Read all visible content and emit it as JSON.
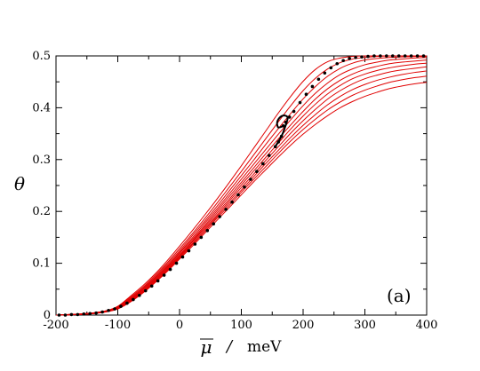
{
  "chart_data": {
    "type": "line",
    "xlabel_symbol": "μ",
    "xlabel_sep": "/",
    "xlabel_unit": "meV",
    "ylabel": "θ",
    "panel_label": "(a)",
    "xlim": [
      -200,
      400
    ],
    "ylim": [
      0,
      0.5
    ],
    "x_ticks": [
      -200,
      -100,
      0,
      100,
      200,
      300,
      400
    ],
    "y_ticks": [
      0,
      0.1,
      0.2,
      0.3,
      0.4,
      0.5
    ],
    "y_tick_labels": [
      "0",
      "0.1",
      "0.2",
      "0.3",
      "0.4",
      "0.5"
    ],
    "x_minor_step": 50,
    "y_minor_step": 0.05,
    "colors": {
      "red_series": "#e00000",
      "black_series": "#000000",
      "axes": "#000000"
    },
    "red_series": [
      {
        "x": [
          -200,
          -150,
          -120,
          -100,
          -80,
          -60,
          -40,
          -20,
          0,
          20,
          40,
          60,
          80,
          100,
          120,
          140,
          160,
          180,
          200,
          220,
          240,
          260,
          280,
          300,
          320,
          340,
          360,
          380,
          400
        ],
        "y": [
          0,
          0.002,
          0.006,
          0.012,
          0.025,
          0.042,
          0.062,
          0.084,
          0.108,
          0.132,
          0.157,
          0.182,
          0.207,
          0.232,
          0.257,
          0.281,
          0.305,
          0.328,
          0.349,
          0.368,
          0.385,
          0.4,
          0.412,
          0.422,
          0.43,
          0.437,
          0.442,
          0.446,
          0.449
        ]
      },
      {
        "x": [
          -200,
          -150,
          -120,
          -100,
          -80,
          -60,
          -40,
          -20,
          0,
          20,
          40,
          60,
          80,
          100,
          120,
          140,
          160,
          180,
          200,
          220,
          240,
          260,
          280,
          300,
          320,
          340,
          360,
          380,
          400
        ],
        "y": [
          0,
          0.002,
          0.006,
          0.012,
          0.026,
          0.043,
          0.063,
          0.086,
          0.11,
          0.135,
          0.16,
          0.186,
          0.211,
          0.237,
          0.262,
          0.287,
          0.312,
          0.336,
          0.358,
          0.378,
          0.396,
          0.411,
          0.424,
          0.434,
          0.442,
          0.449,
          0.454,
          0.458,
          0.461
        ]
      },
      {
        "x": [
          -200,
          -150,
          -120,
          -100,
          -80,
          -60,
          -40,
          -20,
          0,
          20,
          40,
          60,
          80,
          100,
          120,
          140,
          160,
          180,
          200,
          220,
          240,
          260,
          280,
          300,
          320,
          340,
          360,
          380,
          400
        ],
        "y": [
          0,
          0.002,
          0.006,
          0.013,
          0.027,
          0.044,
          0.064,
          0.087,
          0.112,
          0.137,
          0.163,
          0.189,
          0.215,
          0.241,
          0.267,
          0.293,
          0.318,
          0.343,
          0.366,
          0.387,
          0.406,
          0.422,
          0.435,
          0.445,
          0.453,
          0.459,
          0.464,
          0.468,
          0.471
        ]
      },
      {
        "x": [
          -200,
          -150,
          -120,
          -100,
          -80,
          -60,
          -40,
          -20,
          0,
          20,
          40,
          60,
          80,
          100,
          120,
          140,
          160,
          180,
          200,
          220,
          240,
          260,
          280,
          300,
          320,
          340,
          360,
          380,
          400
        ],
        "y": [
          0,
          0.002,
          0.007,
          0.013,
          0.028,
          0.045,
          0.066,
          0.089,
          0.114,
          0.14,
          0.166,
          0.192,
          0.219,
          0.246,
          0.272,
          0.299,
          0.325,
          0.351,
          0.375,
          0.397,
          0.417,
          0.433,
          0.446,
          0.456,
          0.463,
          0.469,
          0.473,
          0.476,
          0.479
        ]
      },
      {
        "x": [
          -200,
          -150,
          -120,
          -100,
          -80,
          -60,
          -40,
          -20,
          0,
          20,
          40,
          60,
          80,
          100,
          120,
          140,
          160,
          180,
          200,
          220,
          240,
          260,
          280,
          300,
          320,
          340,
          360,
          380,
          400
        ],
        "y": [
          0,
          0.002,
          0.007,
          0.014,
          0.029,
          0.046,
          0.067,
          0.091,
          0.116,
          0.142,
          0.169,
          0.196,
          0.223,
          0.251,
          0.278,
          0.305,
          0.332,
          0.359,
          0.384,
          0.407,
          0.427,
          0.443,
          0.456,
          0.465,
          0.472,
          0.477,
          0.481,
          0.484,
          0.486
        ]
      },
      {
        "x": [
          -200,
          -150,
          -120,
          -100,
          -80,
          -60,
          -40,
          -20,
          0,
          20,
          40,
          60,
          80,
          100,
          120,
          140,
          160,
          180,
          200,
          220,
          240,
          260,
          280,
          300,
          320,
          340,
          360,
          380,
          400
        ],
        "y": [
          0,
          0.002,
          0.007,
          0.014,
          0.03,
          0.048,
          0.069,
          0.093,
          0.119,
          0.145,
          0.172,
          0.2,
          0.228,
          0.256,
          0.284,
          0.312,
          0.34,
          0.367,
          0.393,
          0.417,
          0.437,
          0.453,
          0.465,
          0.474,
          0.48,
          0.485,
          0.488,
          0.49,
          0.492
        ]
      },
      {
        "x": [
          -200,
          -150,
          -120,
          -100,
          -80,
          -60,
          -40,
          -20,
          0,
          20,
          40,
          60,
          80,
          100,
          120,
          140,
          160,
          180,
          200,
          220,
          240,
          260,
          280,
          300,
          320,
          340,
          360,
          380,
          400
        ],
        "y": [
          0,
          0.002,
          0.007,
          0.015,
          0.031,
          0.049,
          0.071,
          0.095,
          0.121,
          0.148,
          0.176,
          0.204,
          0.233,
          0.262,
          0.291,
          0.32,
          0.349,
          0.377,
          0.404,
          0.428,
          0.448,
          0.464,
          0.475,
          0.483,
          0.488,
          0.492,
          0.494,
          0.496,
          0.497
        ]
      },
      {
        "x": [
          -200,
          -150,
          -120,
          -100,
          -80,
          -60,
          -40,
          -20,
          0,
          20,
          40,
          60,
          80,
          100,
          120,
          140,
          160,
          180,
          200,
          220,
          240,
          260,
          280,
          300,
          320,
          340,
          360,
          380,
          400
        ],
        "y": [
          0,
          0.003,
          0.008,
          0.015,
          0.032,
          0.051,
          0.073,
          0.098,
          0.124,
          0.152,
          0.18,
          0.209,
          0.239,
          0.269,
          0.299,
          0.33,
          0.36,
          0.389,
          0.417,
          0.441,
          0.461,
          0.476,
          0.486,
          0.492,
          0.495,
          0.497,
          0.498,
          0.499,
          0.499
        ]
      },
      {
        "x": [
          -200,
          -150,
          -120,
          -100,
          -80,
          -60,
          -40,
          -20,
          0,
          20,
          40,
          60,
          80,
          100,
          120,
          140,
          160,
          180,
          200,
          220,
          240,
          260,
          280,
          300,
          320,
          340,
          360,
          380,
          400
        ],
        "y": [
          0,
          0.003,
          0.008,
          0.016,
          0.034,
          0.053,
          0.076,
          0.101,
          0.128,
          0.156,
          0.185,
          0.215,
          0.246,
          0.277,
          0.309,
          0.341,
          0.373,
          0.404,
          0.433,
          0.457,
          0.475,
          0.487,
          0.494,
          0.497,
          0.499,
          0.5,
          0.5,
          0.5,
          0.5
        ]
      },
      {
        "x": [
          -200,
          -150,
          -120,
          -100,
          -80,
          -60,
          -40,
          -20,
          0,
          20,
          40,
          60,
          80,
          100,
          120,
          140,
          160,
          180,
          200,
          220,
          240,
          260,
          280,
          300,
          320,
          340,
          360,
          380,
          400
        ],
        "y": [
          0,
          0.003,
          0.008,
          0.017,
          0.036,
          0.056,
          0.079,
          0.105,
          0.133,
          0.162,
          0.192,
          0.223,
          0.255,
          0.288,
          0.322,
          0.356,
          0.39,
          0.422,
          0.451,
          0.474,
          0.489,
          0.496,
          0.499,
          0.5,
          0.5,
          0.5,
          0.5,
          0.5,
          0.5
        ]
      }
    ],
    "black_points": {
      "x": [
        -195,
        -185,
        -175,
        -165,
        -155,
        -145,
        -135,
        -125,
        -115,
        -105,
        -95,
        -85,
        -75,
        -65,
        -55,
        -45,
        -35,
        -25,
        -15,
        -5,
        5,
        15,
        25,
        35,
        45,
        55,
        65,
        75,
        85,
        95,
        105,
        115,
        125,
        135,
        145,
        155,
        160,
        165,
        168,
        172,
        178,
        185,
        195,
        205,
        215,
        225,
        235,
        245,
        255,
        265,
        275,
        285,
        295,
        305,
        315,
        325,
        335,
        345,
        355,
        365,
        375,
        385,
        395
      ],
      "y": [
        0,
        0,
        0.001,
        0.001,
        0.002,
        0.003,
        0.004,
        0.006,
        0.009,
        0.012,
        0.017,
        0.023,
        0.03,
        0.038,
        0.047,
        0.056,
        0.066,
        0.077,
        0.088,
        0.1,
        0.112,
        0.124,
        0.137,
        0.15,
        0.163,
        0.176,
        0.19,
        0.204,
        0.218,
        0.232,
        0.247,
        0.262,
        0.277,
        0.292,
        0.308,
        0.325,
        0.334,
        0.345,
        0.365,
        0.372,
        0.382,
        0.393,
        0.41,
        0.426,
        0.441,
        0.455,
        0.467,
        0.477,
        0.485,
        0.491,
        0.495,
        0.497,
        0.498,
        0.499,
        0.5,
        0.5,
        0.5,
        0.5,
        0.5,
        0.5,
        0.5,
        0.5,
        0.5
      ]
    },
    "black_loop": {
      "x": [
        155,
        160,
        165,
        170,
        175,
        170,
        163,
        158,
        160,
        168
      ],
      "y": [
        0.325,
        0.335,
        0.345,
        0.36,
        0.38,
        0.385,
        0.382,
        0.372,
        0.362,
        0.365
      ]
    }
  }
}
